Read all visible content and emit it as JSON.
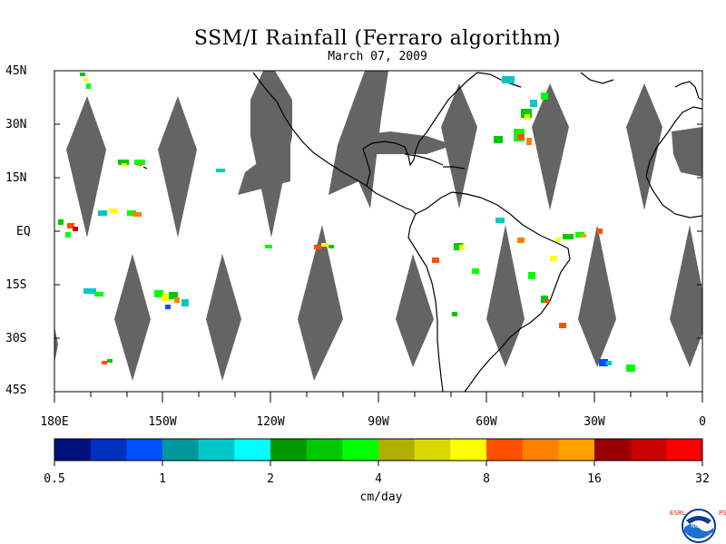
{
  "title": "SSM/I Rainfall (Ferraro algorithm)",
  "date": "March 07, 2009",
  "lat_labels": [
    "45N",
    "30N",
    "15N",
    "EQ",
    "15S",
    "30S",
    "45S"
  ],
  "lon_labels": [
    "180E",
    "150W",
    "120W",
    "90W",
    "60W",
    "30W",
    "0"
  ],
  "colorbar": {
    "unit": "cm/day",
    "tick_labels": [
      "0.5",
      "1",
      "2",
      "4",
      "8",
      "16",
      "32"
    ],
    "colors": [
      "#00107a",
      "#0030c0",
      "#0050ff",
      "#00989a",
      "#00c8c8",
      "#00ffff",
      "#009800",
      "#00c800",
      "#00ff00",
      "#b0b000",
      "#d8d800",
      "#ffff00",
      "#ff5000",
      "#ff8000",
      "#ffa000",
      "#980000",
      "#c80000",
      "#ff0000"
    ]
  },
  "map_colors": {
    "gap": "#646464",
    "coast": "#000000",
    "background": "#ffffff"
  },
  "credit": {
    "left_letters": "ESRL",
    "right_letters": "PSD",
    "logo_text": "NOAA"
  }
}
